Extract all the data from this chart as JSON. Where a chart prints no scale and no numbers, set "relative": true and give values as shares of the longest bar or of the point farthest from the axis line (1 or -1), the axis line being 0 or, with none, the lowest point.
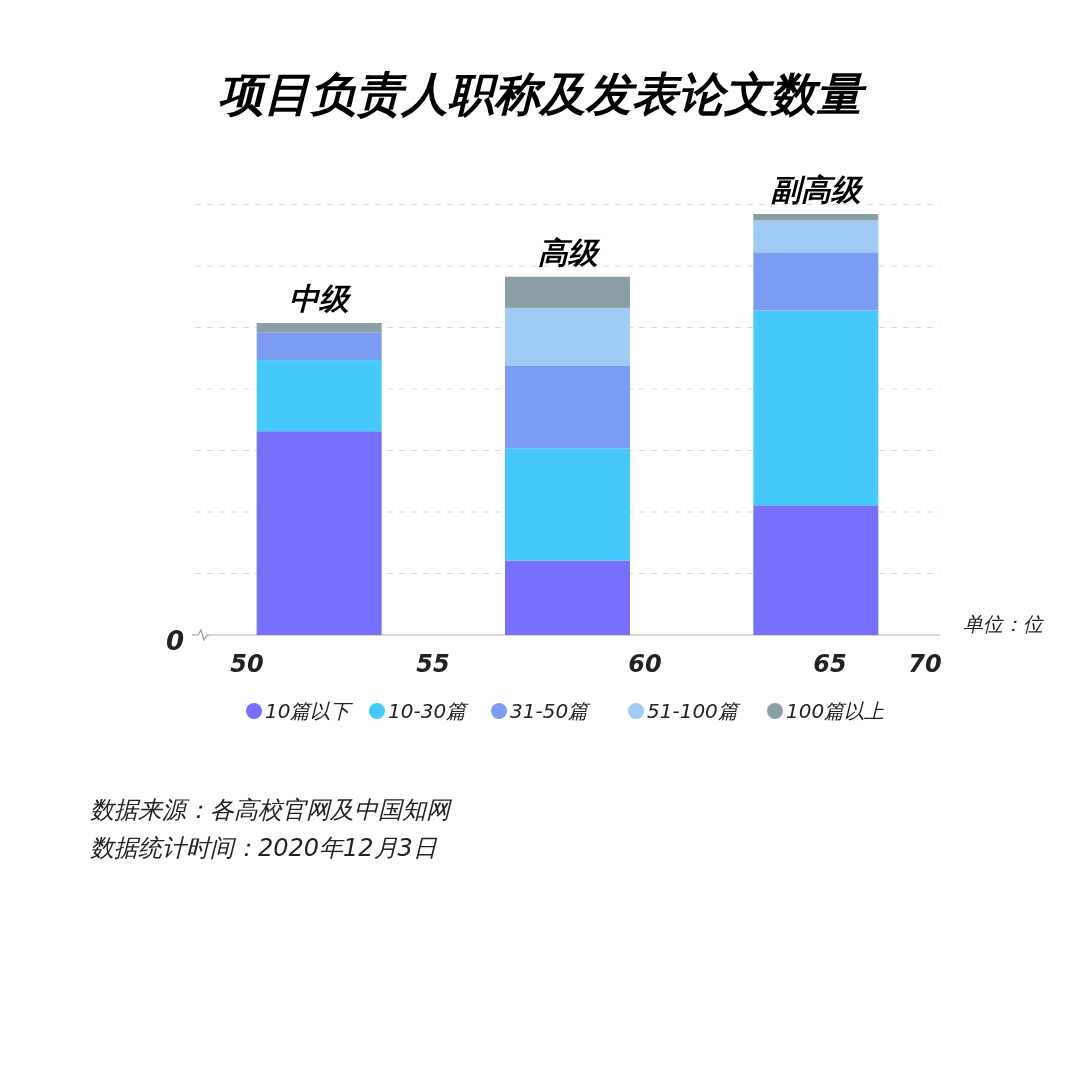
{
  "chart_data": {
    "type": "bar",
    "title": "项目负责人职称及发表论文数量",
    "categories": [
      "中级",
      "高级",
      "副高级"
    ],
    "stacked": true,
    "relative": true,
    "grid": "y",
    "legend": "bottom",
    "marker": "circle",
    "series": [
      {
        "name": "10篇以下",
        "color": "#7670fb",
        "values": [
          0.484,
          0.177,
          0.308
        ]
      },
      {
        "name": "10-30篇",
        "color": "#45c9fb",
        "values": [
          0.169,
          0.266,
          0.463
        ]
      },
      {
        "name": "31-50篇",
        "color": "#7b9cf2",
        "values": [
          0.066,
          0.196,
          0.138
        ]
      },
      {
        "name": "51-100篇",
        "color": "#9fcbf4",
        "values": [
          0,
          0.138,
          0.076
        ]
      },
      {
        "name": "100篇以上",
        "color": "#8a9ea3",
        "values": [
          0.022,
          0.074,
          0.015
        ]
      }
    ],
    "annotations": [
      "0",
      "50",
      "55",
      "60",
      "65",
      "70",
      "单位：位",
      "数据来源：各高校官网及中国知网",
      "数据统计时间：2020年12月3日"
    ]
  }
}
